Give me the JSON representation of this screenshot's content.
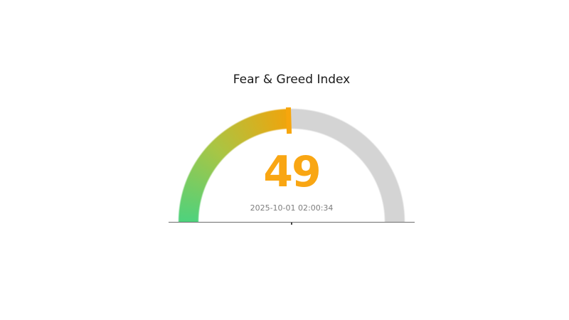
{
  "chart_data": {
    "type": "gauge",
    "title": "Fear & Greed Index",
    "value": 49,
    "value_label": "49",
    "min": 0,
    "max": 100,
    "timestamp": "2025-10-01 02:00:34",
    "legend_position": "none",
    "grid": false,
    "gauge_colors": {
      "arc_start_green": "#4ed27d",
      "arc_mid_yellowgreen": "#a9c544",
      "arc_end_orange": "#f0a40c",
      "arc_remainder_gray": "#d4d4d4",
      "marker_orange": "#f7a60d",
      "value_text_orange": "#f9a613",
      "timestamp_text_gray": "#7d7d7d",
      "title_text": "#1a1a1a",
      "baseline_gray": "#6e6e6e",
      "tick_dark": "#444444"
    }
  }
}
